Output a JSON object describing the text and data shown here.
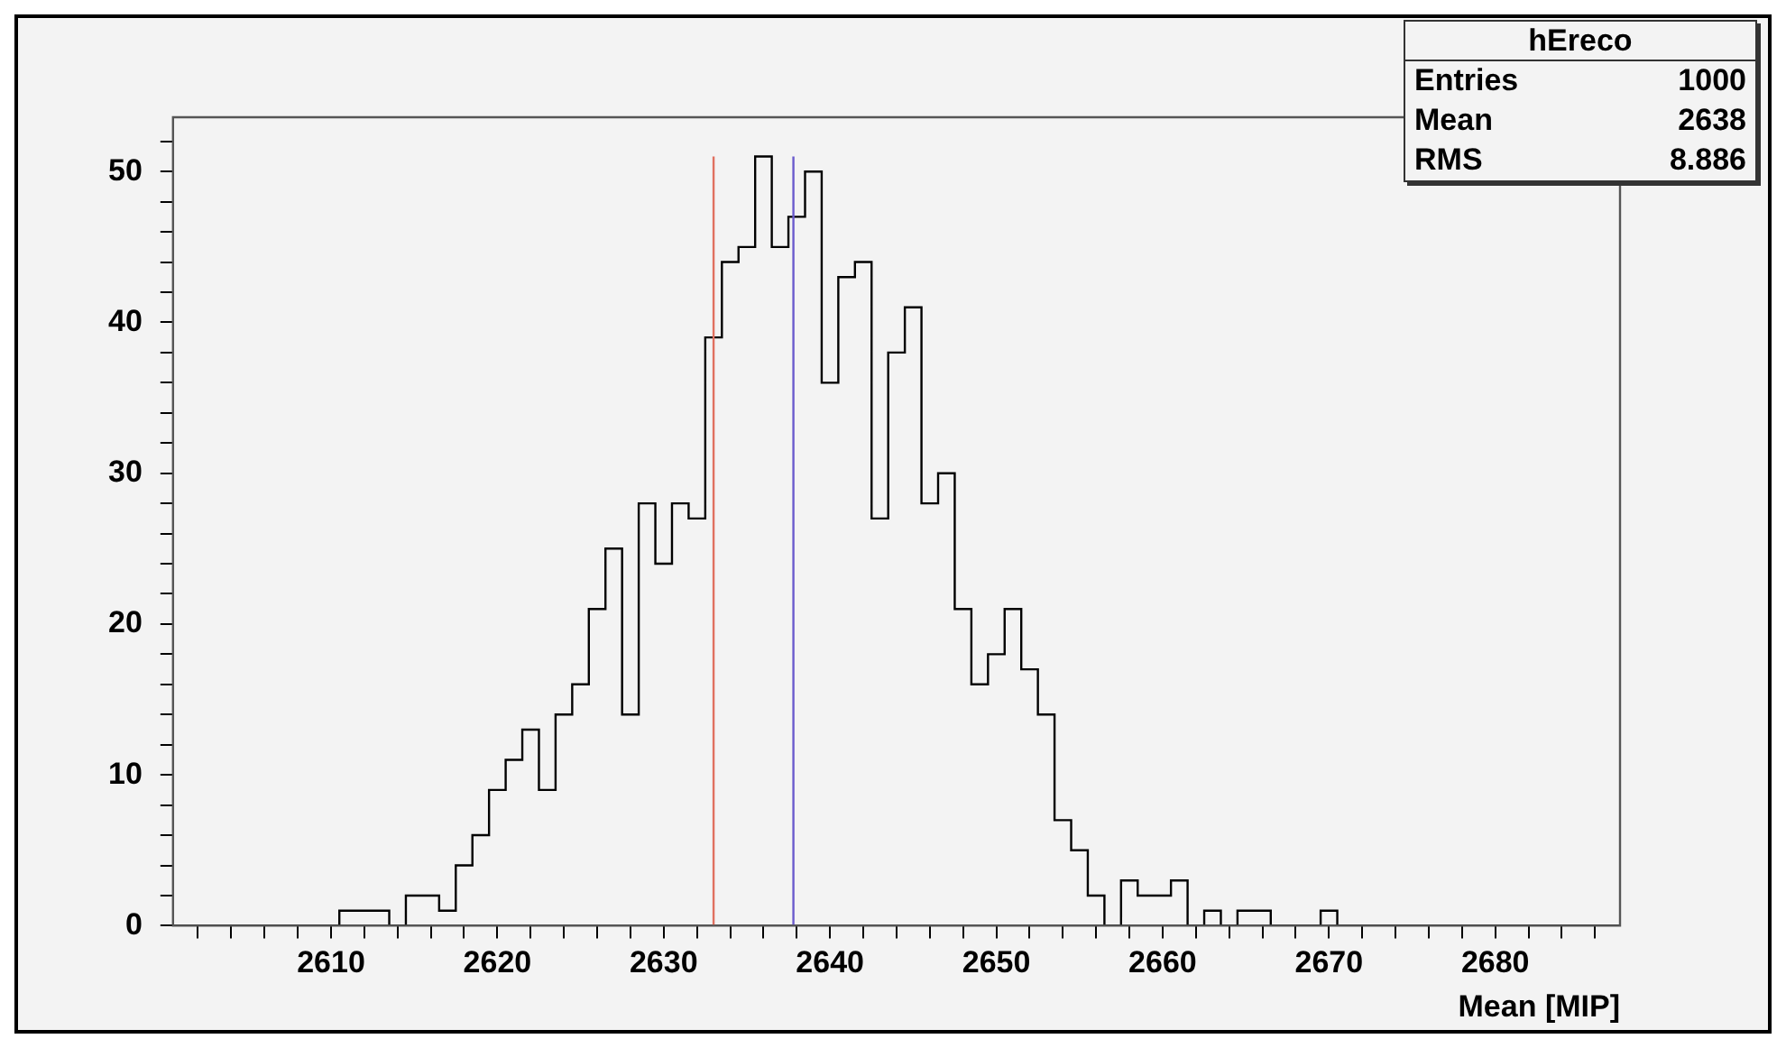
{
  "chart_data": {
    "type": "histogram",
    "bins": [
      2600.5,
      2601.5,
      2602.5,
      2603.5,
      2604.5,
      2605.5,
      2606.5,
      2607.5,
      2608.5,
      2609.5,
      2610.5,
      2611.5,
      2612.5,
      2613.5,
      2614.5,
      2615.5,
      2616.5,
      2617.5,
      2618.5,
      2619.5,
      2620.5,
      2621.5,
      2622.5,
      2623.5,
      2624.5,
      2625.5,
      2626.5,
      2627.5,
      2628.5,
      2629.5,
      2630.5,
      2631.5,
      2632.5,
      2633.5,
      2634.5,
      2635.5,
      2636.5,
      2637.5,
      2638.5,
      2639.5,
      2640.5,
      2641.5,
      2642.5,
      2643.5,
      2644.5,
      2645.5,
      2646.5,
      2647.5,
      2648.5,
      2649.5,
      2650.5,
      2651.5,
      2652.5,
      2653.5,
      2654.5,
      2655.5,
      2656.5,
      2657.5,
      2658.5,
      2659.5,
      2660.5,
      2661.5,
      2662.5,
      2663.5,
      2664.5,
      2665.5,
      2666.5,
      2667.5,
      2668.5,
      2669.5,
      2670.5,
      2671.5,
      2672.5,
      2673.5,
      2674.5,
      2675.5,
      2676.5,
      2677.5,
      2678.5,
      2679.5,
      2680.5,
      2681.5,
      2682.5,
      2683.5,
      2684.5,
      2685.5,
      2686.5,
      2687.5
    ],
    "values": [
      0,
      0,
      0,
      0,
      0,
      0,
      0,
      0,
      0,
      0,
      1,
      1,
      1,
      0,
      2,
      2,
      1,
      4,
      6,
      9,
      11,
      13,
      9,
      14,
      16,
      21,
      25,
      14,
      28,
      24,
      28,
      27,
      39,
      44,
      45,
      51,
      45,
      47,
      50,
      36,
      43,
      44,
      27,
      38,
      41,
      28,
      30,
      21,
      16,
      18,
      21,
      17,
      14,
      7,
      5,
      2,
      0,
      3,
      2,
      2,
      3,
      0,
      1,
      0,
      1,
      1,
      0,
      0,
      0,
      1,
      0,
      0,
      0,
      0,
      0,
      0,
      0,
      0,
      0,
      0,
      0,
      0,
      0,
      0,
      0,
      0,
      0
    ],
    "color": "#000000",
    "xlim": [
      2600.5,
      2687.5
    ],
    "xticks": [
      {
        "value": 2602,
        "label": null
      },
      {
        "value": 2604,
        "label": null
      },
      {
        "value": 2606,
        "label": null
      },
      {
        "value": 2608,
        "label": null
      },
      2610,
      {
        "value": 2612,
        "label": null
      },
      {
        "value": 2614,
        "label": null
      },
      {
        "value": 2616,
        "label": null
      },
      {
        "value": 2618,
        "label": null
      },
      2620,
      {
        "value": 2622,
        "label": null
      },
      {
        "value": 2624,
        "label": null
      },
      {
        "value": 2626,
        "label": null
      },
      {
        "value": 2628,
        "label": null
      },
      2630,
      {
        "value": 2632,
        "label": null
      },
      {
        "value": 2634,
        "label": null
      },
      {
        "value": 2636,
        "label": null
      },
      {
        "value": 2638,
        "label": null
      },
      2640,
      {
        "value": 2642,
        "label": null
      },
      {
        "value": 2644,
        "label": null
      },
      {
        "value": 2646,
        "label": null
      },
      {
        "value": 2648,
        "label": null
      },
      2650,
      {
        "value": 2652,
        "label": null
      },
      {
        "value": 2654,
        "label": null
      },
      {
        "value": 2656,
        "label": null
      },
      {
        "value": 2658,
        "label": null
      },
      2660,
      {
        "value": 2662,
        "label": null
      },
      {
        "value": 2664,
        "label": null
      },
      {
        "value": 2666,
        "label": null
      },
      {
        "value": 2668,
        "label": null
      },
      2670,
      {
        "value": 2672,
        "label": null
      },
      {
        "value": 2674,
        "label": null
      },
      {
        "value": 2676,
        "label": null
      },
      {
        "value": 2678,
        "label": null
      },
      2680,
      {
        "value": 2682,
        "label": null
      },
      {
        "value": 2684,
        "label": null
      },
      {
        "value": 2686,
        "label": null
      }
    ],
    "ylim": [
      0,
      53.6
    ],
    "yticks": [
      0,
      {
        "value": 2,
        "label": null
      },
      {
        "value": 4,
        "label": null
      },
      {
        "value": 6,
        "label": null
      },
      {
        "value": 8,
        "label": null
      },
      10,
      {
        "value": 12,
        "label": null
      },
      {
        "value": 14,
        "label": null
      },
      {
        "value": 16,
        "label": null
      },
      {
        "value": 18,
        "label": null
      },
      20,
      {
        "value": 22,
        "label": null
      },
      {
        "value": 24,
        "label": null
      },
      {
        "value": 26,
        "label": null
      },
      {
        "value": 28,
        "label": null
      },
      30,
      {
        "value": 32,
        "label": null
      },
      {
        "value": 34,
        "label": null
      },
      {
        "value": 36,
        "label": null
      },
      {
        "value": 38,
        "label": null
      },
      40,
      {
        "value": 42,
        "label": null
      },
      {
        "value": 44,
        "label": null
      },
      {
        "value": 46,
        "label": null
      },
      {
        "value": 48,
        "label": null
      },
      50,
      {
        "value": 52,
        "label": null
      }
    ],
    "xlabel": "Mean [MIP]",
    "annotations": [
      "hEreco",
      "Entries",
      "1000",
      "Mean",
      "2638",
      "RMS",
      "8.886"
    ],
    "ref_lines": [
      {
        "axis": "x",
        "value": 2633,
        "color": "#e07060"
      },
      {
        "axis": "x",
        "value": 2637.8,
        "color": "#6a5acd"
      }
    ],
    "grid": false,
    "legend": false
  }
}
